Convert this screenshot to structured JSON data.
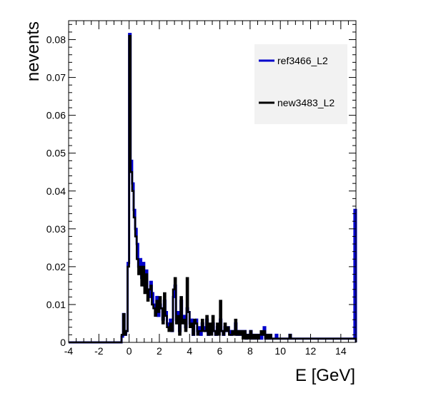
{
  "chart_data": {
    "type": "histogram",
    "title": "",
    "xlabel": "E [GeV]",
    "ylabel": "nevents",
    "xlim": [
      -4,
      15
    ],
    "ylim": [
      0,
      0.085
    ],
    "grid": false,
    "legend_position": "top-right",
    "bin_width": 0.1,
    "x_ticks": [
      -4,
      -2,
      0,
      2,
      4,
      6,
      8,
      10,
      12,
      14
    ],
    "x_tick_labels": [
      "-4",
      "-2",
      "0",
      "2",
      "4",
      "6",
      "8",
      "10",
      "12",
      "14"
    ],
    "y_ticks": [
      0,
      0.01,
      0.02,
      0.03,
      0.04,
      0.05,
      0.06,
      0.07,
      0.08
    ],
    "y_tick_labels": [
      "0",
      "0.01",
      "0.02",
      "0.03",
      "0.04",
      "0.05",
      "0.06",
      "0.07",
      "0.08"
    ],
    "series": [
      {
        "name": "ref3466_L2",
        "color": "#0000cc",
        "bins": [
          [
            -0.5,
            0.0015
          ],
          [
            -0.4,
            0.0075
          ],
          [
            -0.3,
            0.002
          ],
          [
            -0.2,
            0.003
          ],
          [
            -0.1,
            0.021
          ],
          [
            0.0,
            0.0815
          ],
          [
            0.1,
            0.048
          ],
          [
            0.2,
            0.042
          ],
          [
            0.3,
            0.035
          ],
          [
            0.4,
            0.03
          ],
          [
            0.5,
            0.026
          ],
          [
            0.6,
            0.02
          ],
          [
            0.7,
            0.022
          ],
          [
            0.8,
            0.017
          ],
          [
            0.9,
            0.021
          ],
          [
            1.0,
            0.015
          ],
          [
            1.1,
            0.019
          ],
          [
            1.2,
            0.014
          ],
          [
            1.3,
            0.012
          ],
          [
            1.4,
            0.016
          ],
          [
            1.5,
            0.013
          ],
          [
            1.6,
            0.01
          ],
          [
            1.7,
            0.009
          ],
          [
            1.8,
            0.012
          ],
          [
            1.9,
            0.007
          ],
          [
            2.0,
            0.01
          ],
          [
            2.1,
            0.009
          ],
          [
            2.2,
            0.006
          ],
          [
            2.3,
            0.011
          ],
          [
            2.4,
            0.008
          ],
          [
            2.5,
            0.005
          ],
          [
            2.6,
            0.004
          ],
          [
            2.7,
            0.006
          ],
          [
            2.8,
            0.003
          ],
          [
            2.9,
            0.012
          ],
          [
            3.0,
            0.015
          ],
          [
            3.1,
            0.006
          ],
          [
            3.2,
            0.008
          ],
          [
            3.3,
            0.003
          ],
          [
            3.4,
            0.011
          ],
          [
            3.5,
            0.006
          ],
          [
            3.6,
            0.007
          ],
          [
            3.7,
            0.004
          ],
          [
            3.8,
            0.009
          ],
          [
            3.9,
            0.008
          ],
          [
            4.0,
            0.005
          ],
          [
            4.1,
            0.006
          ],
          [
            4.2,
            0.002
          ],
          [
            4.3,
            0.005
          ],
          [
            4.4,
            0.006
          ],
          [
            4.5,
            0.003
          ],
          [
            4.6,
            0.004
          ],
          [
            4.7,
            0.002
          ],
          [
            4.8,
            0.005
          ],
          [
            4.9,
            0.004
          ],
          [
            5.0,
            0.003
          ],
          [
            5.1,
            0.006
          ],
          [
            5.2,
            0.002
          ],
          [
            5.3,
            0.004
          ],
          [
            5.4,
            0.003
          ],
          [
            5.5,
            0.005
          ],
          [
            5.6,
            0.003
          ],
          [
            5.7,
            0.002
          ],
          [
            5.8,
            0.004
          ],
          [
            5.9,
            0.003
          ],
          [
            6.0,
            0.006
          ],
          [
            6.1,
            0.003
          ],
          [
            6.2,
            0.002
          ],
          [
            6.3,
            0.004
          ],
          [
            6.4,
            0.003
          ],
          [
            6.5,
            0.004
          ],
          [
            6.6,
            0.003
          ],
          [
            6.7,
            0.002
          ],
          [
            6.8,
            0.003
          ],
          [
            6.9,
            0.003
          ],
          [
            7.0,
            0.005
          ],
          [
            7.1,
            0.002
          ],
          [
            7.2,
            0.003
          ],
          [
            7.3,
            0.002
          ],
          [
            7.4,
            0.003
          ],
          [
            7.5,
            0.002
          ],
          [
            7.6,
            0.003
          ],
          [
            7.7,
            0.001
          ],
          [
            7.8,
            0.002
          ],
          [
            7.9,
            0.002
          ],
          [
            8.0,
            0.003
          ],
          [
            8.1,
            0.001
          ],
          [
            8.2,
            0.002
          ],
          [
            8.3,
            0.001
          ],
          [
            8.4,
            0.002
          ],
          [
            8.5,
            0.001
          ],
          [
            8.6,
            0.002
          ],
          [
            8.7,
            0.001
          ],
          [
            8.8,
            0.002
          ],
          [
            8.9,
            0.004
          ],
          [
            9.0,
            0.001
          ],
          [
            9.1,
            0.002
          ],
          [
            9.2,
            0.001
          ],
          [
            9.3,
            0.002
          ],
          [
            9.4,
            0.001
          ],
          [
            9.5,
            0.001
          ],
          [
            9.6,
            0.001
          ],
          [
            9.7,
            0.002
          ],
          [
            9.8,
            0.001
          ],
          [
            9.9,
            0.001
          ],
          [
            10.0,
            0.001
          ],
          [
            10.1,
            0.001
          ],
          [
            10.2,
            0.001
          ],
          [
            10.3,
            0.001
          ],
          [
            10.4,
            0.001
          ],
          [
            10.5,
            0.001
          ],
          [
            10.6,
            0.002
          ],
          [
            10.7,
            0.001
          ],
          [
            10.8,
            0.001
          ],
          [
            10.9,
            0.001
          ],
          [
            11.0,
            0.001
          ],
          [
            11.1,
            0.001
          ],
          [
            11.2,
            0.001
          ],
          [
            11.3,
            0.001
          ],
          [
            11.4,
            0.001
          ],
          [
            11.5,
            0.001
          ],
          [
            11.6,
            0.001
          ],
          [
            11.7,
            0.001
          ],
          [
            11.8,
            0.001
          ],
          [
            11.9,
            0.001
          ],
          [
            12.0,
            0.001
          ],
          [
            12.1,
            0.001
          ],
          [
            12.2,
            0.001
          ],
          [
            12.3,
            0.001
          ],
          [
            12.4,
            0.001
          ],
          [
            12.5,
            0.001
          ],
          [
            12.6,
            0.001
          ],
          [
            12.7,
            0.001
          ],
          [
            12.8,
            0.001
          ],
          [
            12.9,
            0.001
          ],
          [
            13.0,
            0.001
          ],
          [
            13.1,
            0.001
          ],
          [
            13.2,
            0.001
          ],
          [
            13.3,
            0.001
          ],
          [
            13.4,
            0.001
          ],
          [
            13.5,
            0.001
          ],
          [
            13.6,
            0.001
          ],
          [
            13.7,
            0.001
          ],
          [
            13.8,
            0.001
          ],
          [
            13.9,
            0.001
          ],
          [
            14.0,
            0.001
          ],
          [
            14.1,
            0.001
          ],
          [
            14.2,
            0.001
          ],
          [
            14.3,
            0.001
          ],
          [
            14.4,
            0.001
          ],
          [
            14.5,
            0.001
          ],
          [
            14.6,
            0.001
          ],
          [
            14.7,
            0.001
          ],
          [
            14.8,
            0.001
          ],
          [
            14.9,
            0.035
          ]
        ]
      },
      {
        "name": "new3483_L2",
        "color": "#000000",
        "bins": [
          [
            -0.5,
            0.002
          ],
          [
            -0.4,
            0.0075
          ],
          [
            -0.3,
            0.002
          ],
          [
            -0.2,
            0.003
          ],
          [
            -0.1,
            0.02
          ],
          [
            0.0,
            0.081
          ],
          [
            0.1,
            0.045
          ],
          [
            0.2,
            0.04
          ],
          [
            0.3,
            0.033
          ],
          [
            0.4,
            0.028
          ],
          [
            0.5,
            0.022
          ],
          [
            0.6,
            0.018
          ],
          [
            0.7,
            0.02
          ],
          [
            0.8,
            0.015
          ],
          [
            0.9,
            0.02
          ],
          [
            1.0,
            0.013
          ],
          [
            1.1,
            0.018
          ],
          [
            1.2,
            0.011
          ],
          [
            1.3,
            0.014
          ],
          [
            1.4,
            0.015
          ],
          [
            1.5,
            0.01
          ],
          [
            1.6,
            0.009
          ],
          [
            1.7,
            0.007
          ],
          [
            1.8,
            0.011
          ],
          [
            1.9,
            0.008
          ],
          [
            2.0,
            0.012
          ],
          [
            2.1,
            0.009
          ],
          [
            2.2,
            0.005
          ],
          [
            2.3,
            0.013
          ],
          [
            2.4,
            0.007
          ],
          [
            2.5,
            0.004
          ],
          [
            2.6,
            0.003
          ],
          [
            2.7,
            0.005
          ],
          [
            2.8,
            0.003
          ],
          [
            2.9,
            0.014
          ],
          [
            3.0,
            0.017
          ],
          [
            3.1,
            0.005
          ],
          [
            3.2,
            0.007
          ],
          [
            3.3,
            0.002
          ],
          [
            3.4,
            0.012
          ],
          [
            3.5,
            0.005
          ],
          [
            3.6,
            0.006
          ],
          [
            3.7,
            0.003
          ],
          [
            3.8,
            0.017
          ],
          [
            3.9,
            0.008
          ],
          [
            4.0,
            0.004
          ],
          [
            4.1,
            0.005
          ],
          [
            4.2,
            0.002
          ],
          [
            4.3,
            0.006
          ],
          [
            4.4,
            0.005
          ],
          [
            4.5,
            0.002
          ],
          [
            4.6,
            0.003
          ],
          [
            4.7,
            0.003
          ],
          [
            4.8,
            0.006
          ],
          [
            4.9,
            0.003
          ],
          [
            5.0,
            0.003
          ],
          [
            5.1,
            0.007
          ],
          [
            5.2,
            0.002
          ],
          [
            5.3,
            0.005
          ],
          [
            5.4,
            0.002
          ],
          [
            5.5,
            0.007
          ],
          [
            5.6,
            0.003
          ],
          [
            5.7,
            0.002
          ],
          [
            5.8,
            0.005
          ],
          [
            5.9,
            0.002
          ],
          [
            6.0,
            0.011
          ],
          [
            6.1,
            0.003
          ],
          [
            6.2,
            0.002
          ],
          [
            6.3,
            0.005
          ],
          [
            6.4,
            0.003
          ],
          [
            6.5,
            0.004
          ],
          [
            6.6,
            0.002
          ],
          [
            6.7,
            0.002
          ],
          [
            6.8,
            0.003
          ],
          [
            6.9,
            0.002
          ],
          [
            7.0,
            0.006
          ],
          [
            7.1,
            0.002
          ],
          [
            7.2,
            0.003
          ],
          [
            7.3,
            0.002
          ],
          [
            7.4,
            0.003
          ],
          [
            7.5,
            0.001
          ],
          [
            7.6,
            0.003
          ],
          [
            7.7,
            0.001
          ],
          [
            7.8,
            0.002
          ],
          [
            7.9,
            0.001
          ],
          [
            8.0,
            0.003
          ],
          [
            8.1,
            0.001
          ],
          [
            8.2,
            0.002
          ],
          [
            8.3,
            0.001
          ],
          [
            8.4,
            0.002
          ],
          [
            8.5,
            0.001
          ],
          [
            8.6,
            0.002
          ],
          [
            8.7,
            0.003
          ],
          [
            8.8,
            0.002
          ],
          [
            8.9,
            0.003
          ],
          [
            9.0,
            0.001
          ],
          [
            9.1,
            0.002
          ],
          [
            9.2,
            0.001
          ],
          [
            9.3,
            0.002
          ],
          [
            9.4,
            0.001
          ],
          [
            9.5,
            0.001
          ],
          [
            9.6,
            0.001
          ],
          [
            9.7,
            0.001
          ],
          [
            9.8,
            0.001
          ],
          [
            9.9,
            0.001
          ],
          [
            10.0,
            0.001
          ],
          [
            10.1,
            0.001
          ],
          [
            10.2,
            0.001
          ],
          [
            10.3,
            0.001
          ],
          [
            10.4,
            0.001
          ],
          [
            10.5,
            0.001
          ],
          [
            10.6,
            0.002
          ],
          [
            10.7,
            0.001
          ],
          [
            10.8,
            0.001
          ],
          [
            10.9,
            0.001
          ],
          [
            11.0,
            0.001
          ],
          [
            11.1,
            0.001
          ],
          [
            11.2,
            0.001
          ],
          [
            11.3,
            0.001
          ],
          [
            11.4,
            0.001
          ],
          [
            11.5,
            0.001
          ],
          [
            11.6,
            0.001
          ],
          [
            11.7,
            0.001
          ],
          [
            11.8,
            0.001
          ],
          [
            11.9,
            0.001
          ],
          [
            12.0,
            0.001
          ],
          [
            12.1,
            0.001
          ],
          [
            12.2,
            0.001
          ],
          [
            12.3,
            0.001
          ],
          [
            12.4,
            0.001
          ],
          [
            12.5,
            0.001
          ],
          [
            12.6,
            0.001
          ],
          [
            12.7,
            0.001
          ],
          [
            12.8,
            0.001
          ],
          [
            12.9,
            0.001
          ],
          [
            13.0,
            0.001
          ],
          [
            13.1,
            0.001
          ],
          [
            13.2,
            0.001
          ],
          [
            13.3,
            0.001
          ],
          [
            13.4,
            0.001
          ],
          [
            13.5,
            0.001
          ],
          [
            13.6,
            0.001
          ],
          [
            13.7,
            0.001
          ],
          [
            13.8,
            0.001
          ],
          [
            13.9,
            0.001
          ],
          [
            14.0,
            0.001
          ],
          [
            14.1,
            0.001
          ],
          [
            14.2,
            0.001
          ],
          [
            14.3,
            0.001
          ],
          [
            14.4,
            0.001
          ],
          [
            14.5,
            0.001
          ],
          [
            14.6,
            0.001
          ],
          [
            14.7,
            0.001
          ],
          [
            14.8,
            0.001
          ],
          [
            14.9,
            0.001
          ]
        ]
      }
    ]
  }
}
